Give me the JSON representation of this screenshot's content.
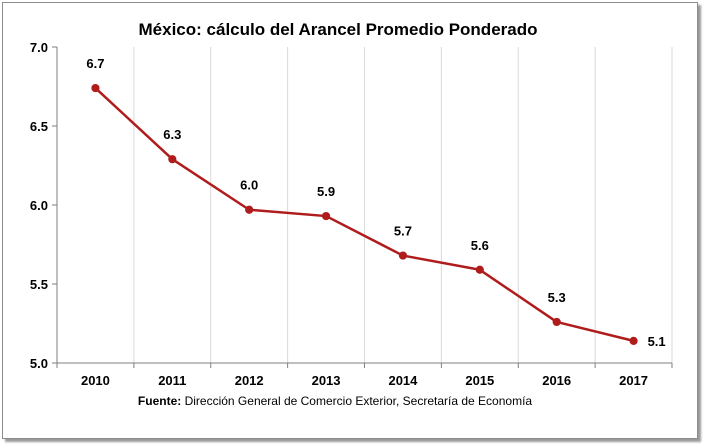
{
  "chart_data": {
    "type": "line",
    "title": "México: cálculo del Arancel Promedio Ponderado",
    "xlabel": "",
    "ylabel": "",
    "categories": [
      "2010",
      "2011",
      "2012",
      "2013",
      "2014",
      "2015",
      "2016",
      "2017"
    ],
    "series": [
      {
        "values": [
          6.74,
          6.29,
          5.97,
          5.93,
          5.68,
          5.59,
          5.26,
          5.14
        ],
        "data_labels": [
          "6.7",
          "6.3",
          "6.0",
          "5.9",
          "5.7",
          "5.6",
          "5.3",
          "5.1"
        ],
        "color": "#b01c1c"
      }
    ],
    "ylim": [
      5.0,
      7.0
    ],
    "y_ticks": [
      "5.0",
      "5.5",
      "6.0",
      "6.5",
      "7.0"
    ],
    "grid": "vertical",
    "legend": "none"
  },
  "source": {
    "label": "Fuente:",
    "text": " Dirección General de Comercio Exterior, Secretaría de Economía"
  }
}
